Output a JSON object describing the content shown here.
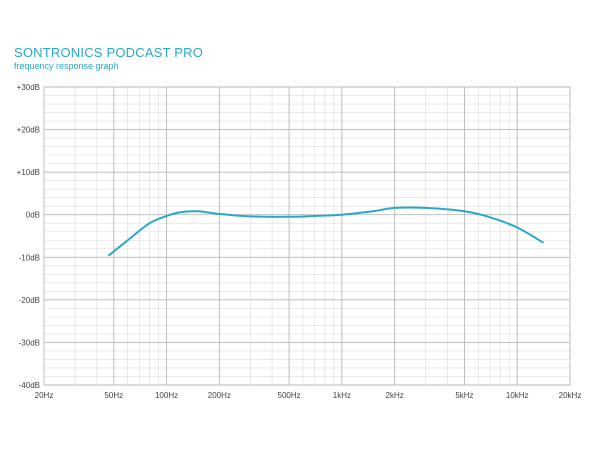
{
  "chart_data": {
    "type": "line",
    "title": "SONTRONICS PODCAST PRO",
    "subtitle": "frequency response graph",
    "xlabel": "",
    "ylabel": "",
    "x_scale": "log",
    "xlim": [
      20,
      20000
    ],
    "ylim": [
      -40,
      30
    ],
    "grid": true,
    "x_ticks": [
      {
        "value": 20,
        "label": "20Hz"
      },
      {
        "value": 50,
        "label": "50Hz"
      },
      {
        "value": 100,
        "label": "100Hz"
      },
      {
        "value": 200,
        "label": "200Hz"
      },
      {
        "value": 500,
        "label": "500Hz"
      },
      {
        "value": 1000,
        "label": "1kHz"
      },
      {
        "value": 2000,
        "label": "2kHz"
      },
      {
        "value": 5000,
        "label": "5kHz"
      },
      {
        "value": 10000,
        "label": "10kHz"
      },
      {
        "value": 20000,
        "label": "20kHz"
      }
    ],
    "y_ticks": [
      {
        "value": 30,
        "label": "+30dB"
      },
      {
        "value": 20,
        "label": "+20dB"
      },
      {
        "value": 10,
        "label": "+10dB"
      },
      {
        "value": 0,
        "label": "0dB"
      },
      {
        "value": -10,
        "label": "-10dB"
      },
      {
        "value": -20,
        "label": "-20dB"
      },
      {
        "value": -30,
        "label": "-30dB"
      },
      {
        "value": -40,
        "label": "-40dB"
      }
    ],
    "series": [
      {
        "color": "#29a9c9",
        "x": [
          47,
          60,
          80,
          100,
          120,
          150,
          200,
          300,
          500,
          700,
          1000,
          1500,
          2000,
          3000,
          5000,
          7000,
          10000,
          14000
        ],
        "y": [
          -9.5,
          -6,
          -2,
          -0.3,
          0.6,
          0.8,
          0.2,
          -0.4,
          -0.5,
          -0.3,
          0,
          0.8,
          1.6,
          1.6,
          0.8,
          -0.6,
          -3,
          -6.5
        ]
      }
    ]
  }
}
